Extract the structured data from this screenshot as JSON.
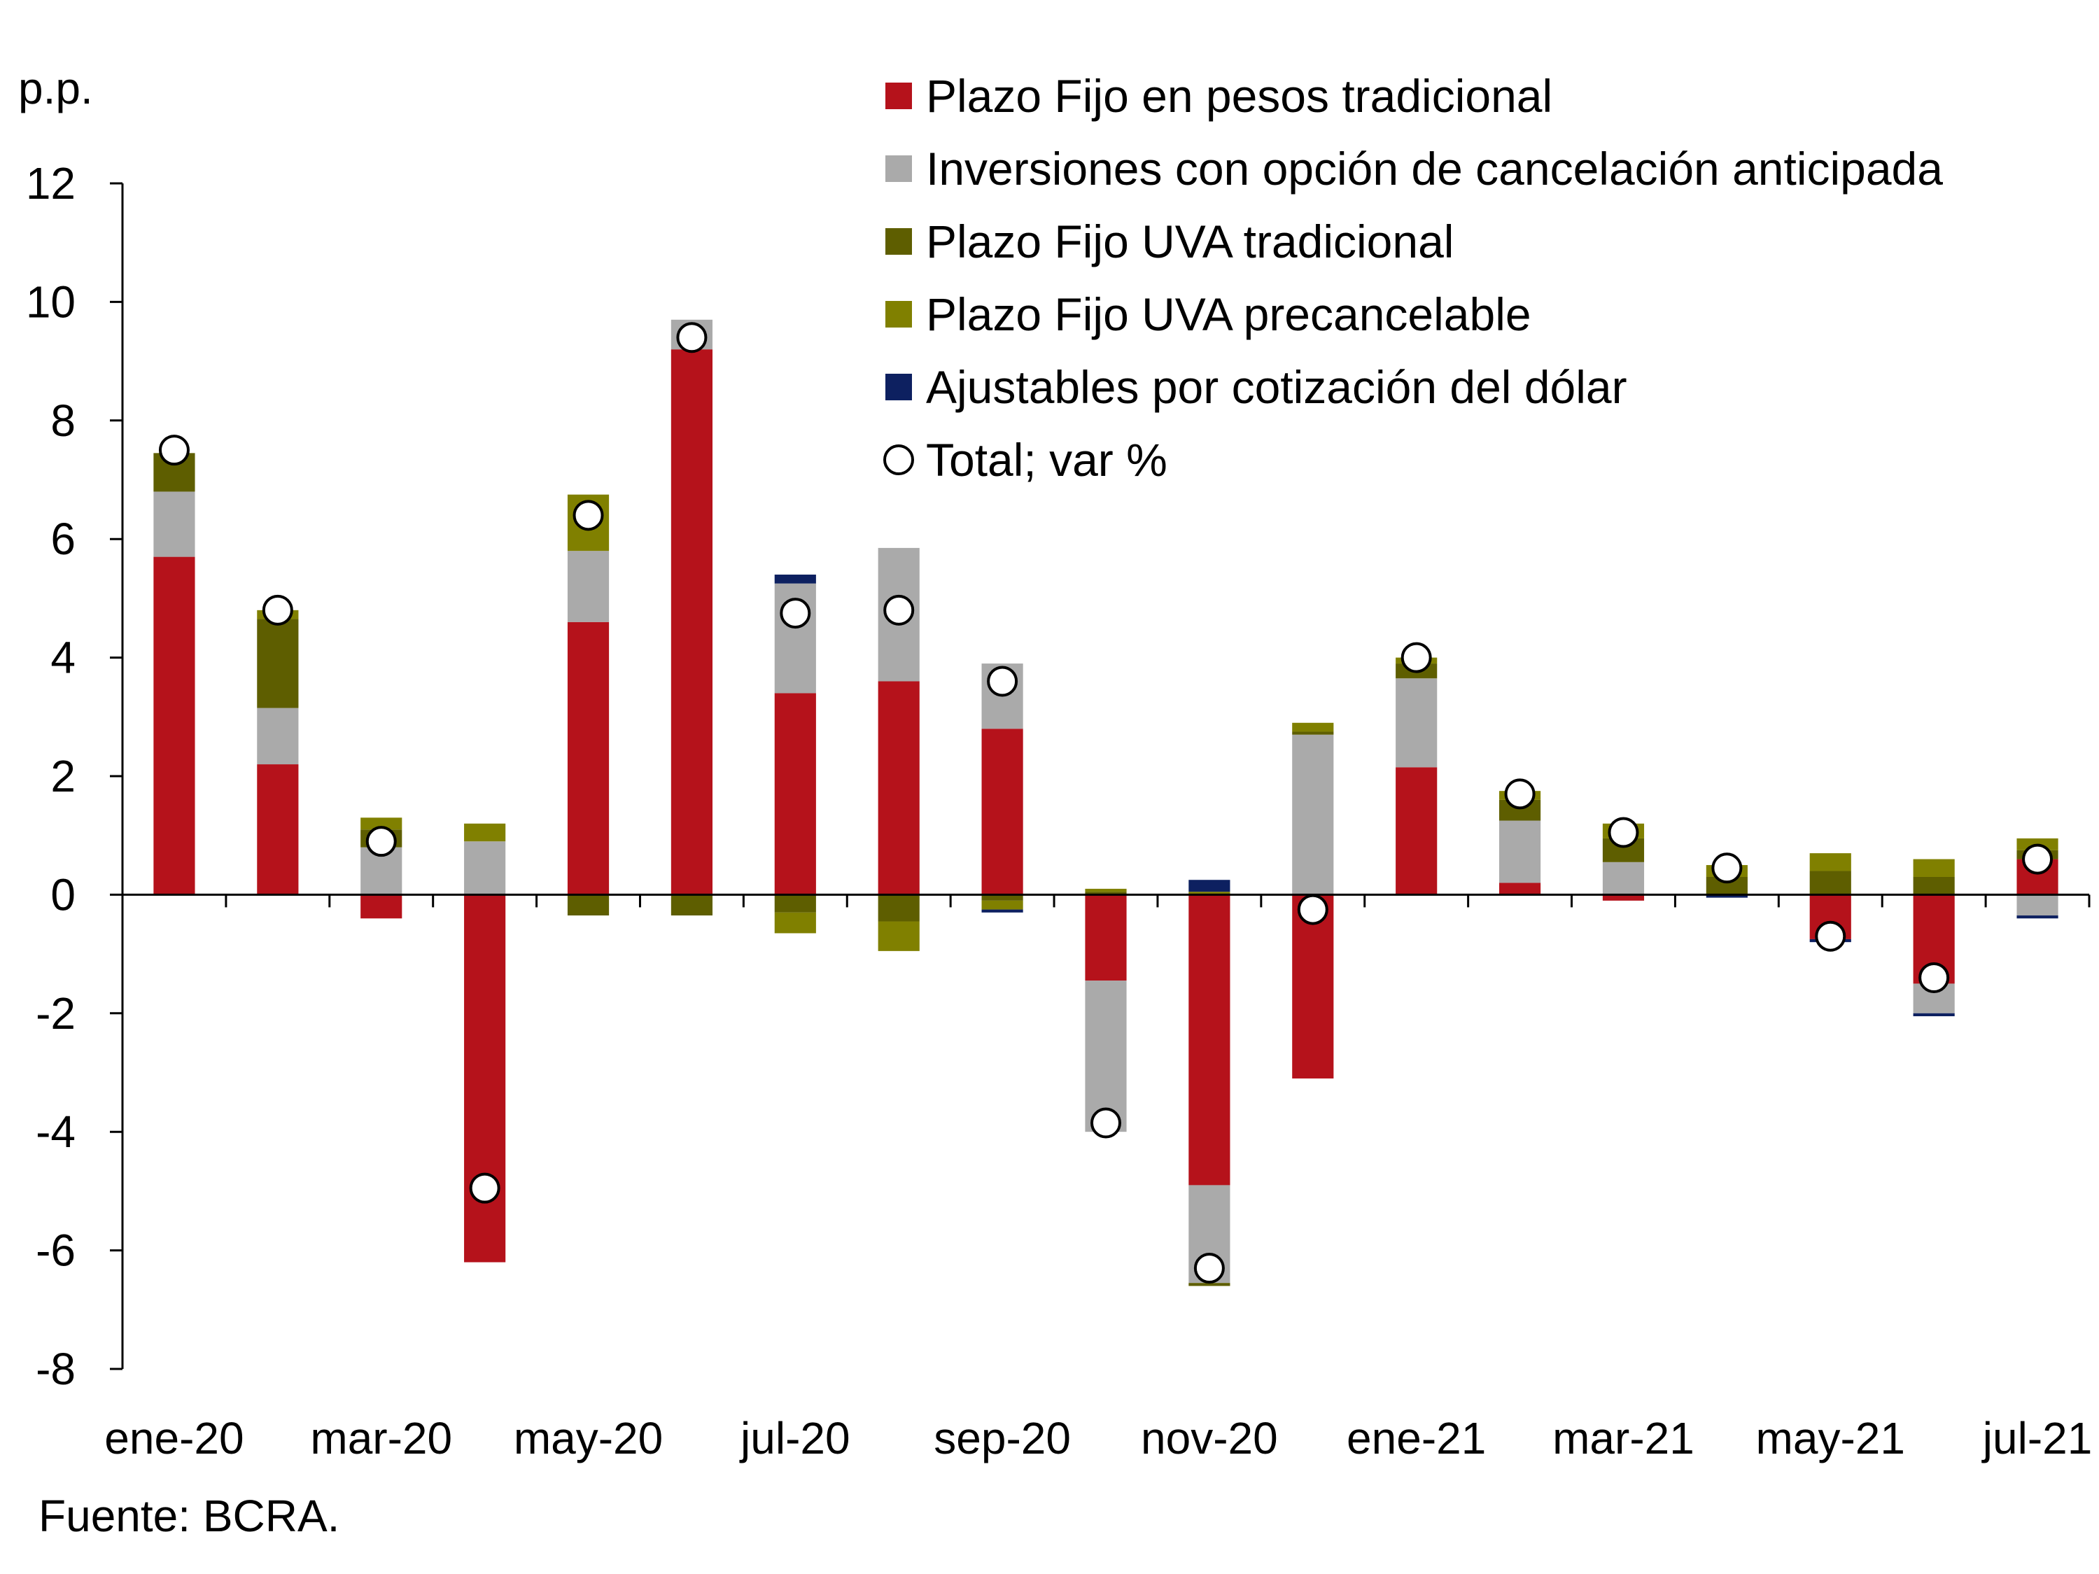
{
  "chart_data": {
    "type": "bar",
    "stacked": true,
    "unit_label": "p.p.",
    "source": "Fuente: BCRA.",
    "ylim": [
      -8,
      12
    ],
    "yticks": [
      -8,
      -6,
      -4,
      -2,
      0,
      2,
      4,
      6,
      8,
      10,
      12
    ],
    "categories": [
      "ene-20",
      "feb-20",
      "mar-20",
      "abr-20",
      "may-20",
      "jun-20",
      "jul-20",
      "ago-20",
      "sep-20",
      "oct-20",
      "nov-20",
      "dic-20",
      "ene-21",
      "feb-21",
      "mar-21",
      "abr-21",
      "may-21",
      "jun-21",
      "jul-21"
    ],
    "x_tick_labels": [
      "ene-20",
      "mar-20",
      "may-20",
      "jul-20",
      "sep-20",
      "nov-20",
      "ene-21",
      "mar-21",
      "may-21",
      "jul-21"
    ],
    "legend_position": "top-right",
    "series": [
      {
        "name": "Plazo Fijo en pesos tradicional",
        "color": "#b5121b",
        "values": [
          5.7,
          2.2,
          -0.4,
          -6.2,
          4.6,
          9.2,
          3.4,
          3.6,
          2.8,
          -1.45,
          -4.9,
          -3.1,
          2.15,
          0.2,
          -0.1,
          0.0,
          -0.75,
          -1.5,
          0.6
        ]
      },
      {
        "name": "Inversiones con opción de cancelación anticipada",
        "color": "#aaaaaa",
        "values": [
          1.1,
          0.95,
          0.8,
          0.9,
          1.2,
          0.5,
          1.85,
          2.25,
          1.1,
          -2.55,
          -1.65,
          2.7,
          1.5,
          1.05,
          0.55,
          0.0,
          0.0,
          -0.5,
          -0.35
        ]
      },
      {
        "name": "Plazo Fijo UVA tradicional",
        "color": "#5e5e00",
        "values": [
          0.65,
          1.5,
          0.3,
          0.0,
          -0.35,
          -0.35,
          -0.3,
          -0.45,
          -0.1,
          0.05,
          -0.05,
          0.05,
          0.25,
          0.35,
          0.4,
          0.3,
          0.4,
          0.3,
          0.15
        ]
      },
      {
        "name": "Plazo Fijo UVA precancelable",
        "color": "#808000",
        "values": [
          0.0,
          0.15,
          0.2,
          0.3,
          0.95,
          0.0,
          -0.35,
          -0.5,
          -0.15,
          0.05,
          0.05,
          0.15,
          0.1,
          0.15,
          0.25,
          0.2,
          0.3,
          0.3,
          0.2
        ]
      },
      {
        "name": "Ajustables por cotización del dólar",
        "color": "#0d2060",
        "values": [
          0.0,
          0.0,
          0.0,
          0.0,
          0.0,
          0.0,
          0.15,
          0.0,
          -0.05,
          0.0,
          0.2,
          0.0,
          0.0,
          0.0,
          0.0,
          -0.05,
          -0.05,
          -0.05,
          -0.05
        ]
      }
    ],
    "total": {
      "name": "Total; var %",
      "values": [
        7.5,
        4.8,
        0.9,
        -4.95,
        6.4,
        9.4,
        4.75,
        4.8,
        3.6,
        -3.85,
        -6.3,
        -0.25,
        4.0,
        1.7,
        1.05,
        0.45,
        -0.7,
        -1.4,
        0.6
      ]
    }
  }
}
